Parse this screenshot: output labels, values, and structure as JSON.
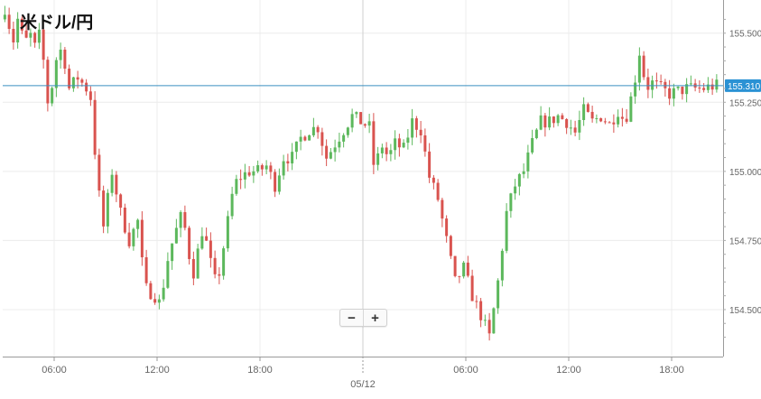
{
  "chart_data": {
    "type": "candlestick",
    "title": "米ドル/円",
    "ylim": [
      154.33,
      155.62
    ],
    "y_ticks": [
      "155.500",
      "155.250",
      "155.000",
      "154.750",
      "154.500"
    ],
    "y_tick_values": [
      155.5,
      155.25,
      155.0,
      154.75,
      154.5
    ],
    "x_range_hours": [
      3,
      45
    ],
    "x_ticks": [
      {
        "hour": 6,
        "label": "06:00"
      },
      {
        "hour": 12,
        "label": "12:00"
      },
      {
        "hour": 18,
        "label": "18:00"
      },
      {
        "hour": 30,
        "label": "06:00"
      },
      {
        "hour": 36,
        "label": "12:00"
      },
      {
        "hour": 42,
        "label": "18:00"
      }
    ],
    "date_marker": {
      "hour": 24,
      "label": "05/12"
    },
    "current_price": {
      "value": 155.31,
      "label": "155.310"
    },
    "colors": {
      "up": "#5cb85c",
      "down": "#d9534f",
      "price_line": "#3a8fc0",
      "price_tag": "#2b92d4",
      "grid": "#ececec"
    },
    "keypoints": [
      [
        3.0,
        155.55
      ],
      [
        3.3,
        155.6
      ],
      [
        3.7,
        155.46
      ],
      [
        4.0,
        155.55
      ],
      [
        4.4,
        155.46
      ],
      [
        4.7,
        155.5
      ],
      [
        5.0,
        155.45
      ],
      [
        5.3,
        155.5
      ],
      [
        5.6,
        155.35
      ],
      [
        5.8,
        155.22
      ],
      [
        6.2,
        155.4
      ],
      [
        6.6,
        155.45
      ],
      [
        7.0,
        155.3
      ],
      [
        7.5,
        155.34
      ],
      [
        8.0,
        155.3
      ],
      [
        8.3,
        155.26
      ],
      [
        8.6,
        154.98
      ],
      [
        9.0,
        154.8
      ],
      [
        9.5,
        155.0
      ],
      [
        10.0,
        154.85
      ],
      [
        10.5,
        154.75
      ],
      [
        11.0,
        154.82
      ],
      [
        11.4,
        154.58
      ],
      [
        12.0,
        154.55
      ],
      [
        12.3,
        154.52
      ],
      [
        12.8,
        154.7
      ],
      [
        13.2,
        154.78
      ],
      [
        13.6,
        154.85
      ],
      [
        14.2,
        154.62
      ],
      [
        14.8,
        154.8
      ],
      [
        15.2,
        154.68
      ],
      [
        15.6,
        154.58
      ],
      [
        16.2,
        154.8
      ],
      [
        16.6,
        154.95
      ],
      [
        17.0,
        154.98
      ],
      [
        17.5,
        155.0
      ],
      [
        18.0,
        155.0
      ],
      [
        18.5,
        155.02
      ],
      [
        19.0,
        154.95
      ],
      [
        19.5,
        155.05
      ],
      [
        20.0,
        155.05
      ],
      [
        20.5,
        155.12
      ],
      [
        21.0,
        155.15
      ],
      [
        21.5,
        155.16
      ],
      [
        22.0,
        155.05
      ],
      [
        22.5,
        155.1
      ],
      [
        23.0,
        155.15
      ],
      [
        23.5,
        155.2
      ],
      [
        24.0,
        155.18
      ],
      [
        24.5,
        155.16
      ],
      [
        24.8,
        155.0
      ],
      [
        25.2,
        155.1
      ],
      [
        25.6,
        155.05
      ],
      [
        26.0,
        155.1
      ],
      [
        26.5,
        155.08
      ],
      [
        27.0,
        155.18
      ],
      [
        27.5,
        155.15
      ],
      [
        28.0,
        154.98
      ],
      [
        28.5,
        154.9
      ],
      [
        29.0,
        154.75
      ],
      [
        29.5,
        154.6
      ],
      [
        30.0,
        154.65
      ],
      [
        30.5,
        154.55
      ],
      [
        31.0,
        154.48
      ],
      [
        31.5,
        154.4
      ],
      [
        32.0,
        154.6
      ],
      [
        32.5,
        154.85
      ],
      [
        33.0,
        154.95
      ],
      [
        33.5,
        155.0
      ],
      [
        34.0,
        155.1
      ],
      [
        34.5,
        155.18
      ],
      [
        35.0,
        155.18
      ],
      [
        35.5,
        155.2
      ],
      [
        36.0,
        155.18
      ],
      [
        36.5,
        155.14
      ],
      [
        37.0,
        155.22
      ],
      [
        37.5,
        155.18
      ],
      [
        38.0,
        155.2
      ],
      [
        38.5,
        155.17
      ],
      [
        39.0,
        155.22
      ],
      [
        39.4,
        155.18
      ],
      [
        39.9,
        155.3
      ],
      [
        40.3,
        155.45
      ],
      [
        40.6,
        155.3
      ],
      [
        41.0,
        155.32
      ],
      [
        41.5,
        155.3
      ],
      [
        42.0,
        155.28
      ],
      [
        42.5,
        155.29
      ],
      [
        43.0,
        155.3
      ],
      [
        43.5,
        155.3
      ],
      [
        44.0,
        155.3
      ],
      [
        44.6,
        155.31
      ]
    ]
  },
  "controls": {
    "zoom_out_label": "−",
    "zoom_in_label": "+"
  }
}
